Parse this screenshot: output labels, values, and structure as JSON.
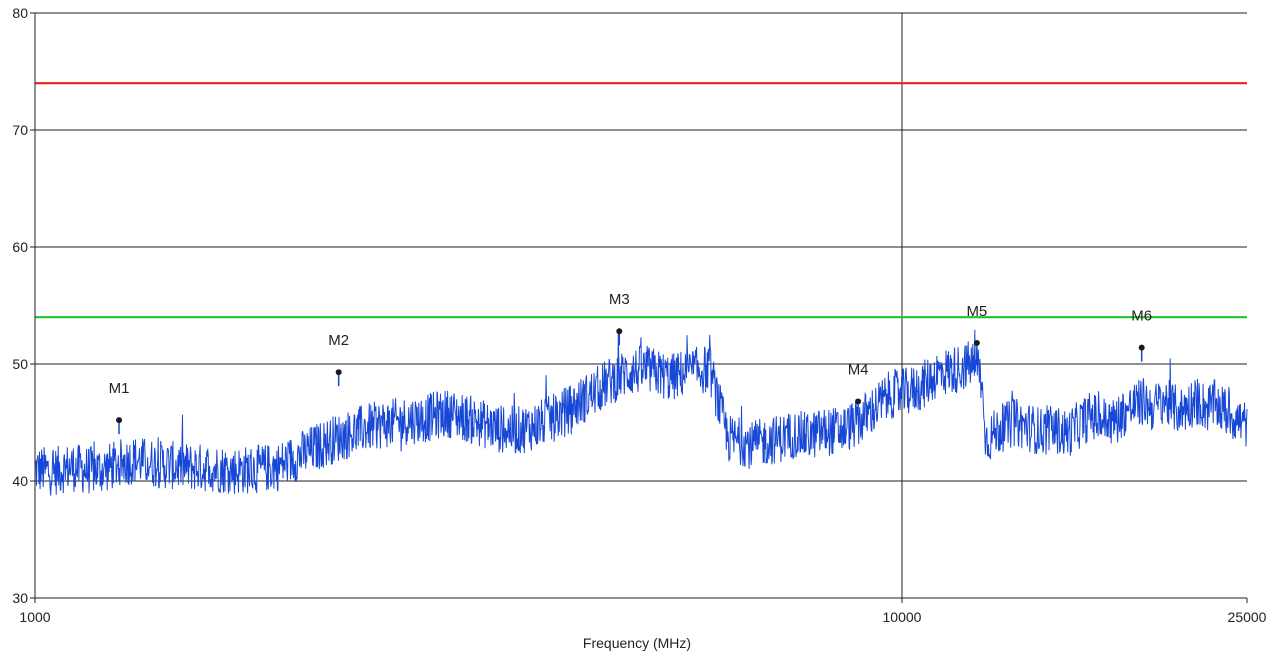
{
  "chart_data": {
    "type": "line",
    "title": "",
    "xlabel": "Frequency (MHz)",
    "ylabel": "",
    "xscale": "log",
    "xlim": [
      1000,
      25000
    ],
    "ylim": [
      30,
      80
    ],
    "x_ticks": [
      1000,
      10000,
      25000
    ],
    "x_tick_labels": [
      "1000",
      "10000",
      "25000"
    ],
    "y_ticks": [
      30,
      40,
      50,
      60,
      70,
      80
    ],
    "y_tick_labels": [
      "30",
      "40",
      "50",
      "60",
      "70",
      "80"
    ],
    "grid": "horizontal",
    "vertical_reference_line": 10000,
    "limit_lines": [
      {
        "value": 74,
        "color": "#e8201f"
      },
      {
        "value": 54,
        "color": "#22c32a"
      }
    ],
    "series": [
      {
        "color": "#1747d6",
        "x": [
          1000,
          1050,
          1100,
          1150,
          1200,
          1250,
          1300,
          1350,
          1400,
          1450,
          1500,
          1600,
          1700,
          1800,
          1900,
          2000,
          2100,
          2200,
          2300,
          2400,
          2500,
          2600,
          2700,
          2800,
          2900,
          3000,
          3200,
          3400,
          3600,
          3800,
          4000,
          4200,
          4400,
          4600,
          4800,
          5000,
          5200,
          5400,
          5600,
          5800,
          6000,
          6300,
          6600,
          6700,
          6900,
          7200,
          7500,
          7800,
          8100,
          8500,
          8900,
          9300,
          9700,
          10000,
          10500,
          11000,
          11500,
          12000,
          12300,
          12500,
          13000,
          13500,
          14000,
          14500,
          15000,
          15500,
          16000,
          16500,
          17000,
          17500,
          18000,
          18500,
          19000,
          19500,
          20000,
          20500,
          21000,
          21500,
          22000,
          22500,
          23000,
          23500,
          24000,
          24500,
          25000
        ],
        "y": [
          41,
          40.8,
          41.2,
          40.9,
          41,
          41.5,
          41.8,
          41.6,
          41.4,
          41.3,
          41.2,
          41.1,
          40.9,
          41,
          41.2,
          42,
          42.8,
          43.5,
          44,
          44.5,
          44.8,
          45,
          45.2,
          45.3,
          45.6,
          45.8,
          45.2,
          44.5,
          44.3,
          44.8,
          45.5,
          46.5,
          47.5,
          48.5,
          49.2,
          49.5,
          49.3,
          48.8,
          49.2,
          49.4,
          49.6,
          43.6,
          43.3,
          43,
          43.3,
          43.6,
          44,
          43.8,
          44.2,
          44.3,
          45,
          46.2,
          47.4,
          47.5,
          48,
          49.2,
          49.5,
          50,
          49.7,
          43.5,
          44.5,
          45,
          44.6,
          44.2,
          44.4,
          44,
          44.8,
          45.6,
          45.2,
          45,
          45.8,
          46.4,
          46.8,
          46.2,
          47,
          46.3,
          46,
          46.6,
          46.8,
          46.2,
          46.6,
          46,
          45.6,
          45.1,
          44.8
        ]
      }
    ],
    "markers": [
      {
        "label": "M1",
        "x": 1250,
        "y": 45.2
      },
      {
        "label": "M2",
        "x": 2240,
        "y": 49.3
      },
      {
        "label": "M3",
        "x": 4720,
        "y": 52.8
      },
      {
        "label": "M4",
        "x": 8900,
        "y": 46.8
      },
      {
        "label": "M5",
        "x": 12200,
        "y": 51.8
      },
      {
        "label": "M6",
        "x": 18900,
        "y": 51.4
      }
    ]
  }
}
